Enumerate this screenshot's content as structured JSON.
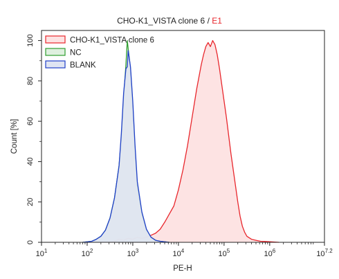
{
  "chart_data": {
    "type": "area",
    "title": {
      "main": "CHO-K1_VISTA clone 6",
      "separator": " / ",
      "gate": "E1",
      "main_color": "#222222",
      "gate_color": "#e8262c"
    },
    "xlabel": "PE-H",
    "ylabel": "Count [%]",
    "x_scale": "log",
    "xlim": [
      1,
      7.2
    ],
    "ylim": [
      0,
      105
    ],
    "x_ticks": [
      {
        "value": 1,
        "base": "10",
        "exp": "1"
      },
      {
        "value": 2,
        "base": "10",
        "exp": "2"
      },
      {
        "value": 3,
        "base": "10",
        "exp": "3"
      },
      {
        "value": 4,
        "base": "10",
        "exp": "4"
      },
      {
        "value": 5,
        "base": "10",
        "exp": "5"
      },
      {
        "value": 6,
        "base": "10",
        "exp": "6"
      },
      {
        "value": 7.2,
        "base": "10",
        "exp": "7.2"
      }
    ],
    "y_ticks": [
      {
        "value": 0,
        "label": "0"
      },
      {
        "value": 20,
        "label": "20"
      },
      {
        "value": 40,
        "label": "40"
      },
      {
        "value": 60,
        "label": "60"
      },
      {
        "value": 80,
        "label": "80"
      },
      {
        "value": 100,
        "label": "100"
      }
    ],
    "legend_position": "top-left",
    "grid": false,
    "series": [
      {
        "name": "CHO-K1_VISTA clone 6",
        "color": "#e8262c",
        "fill": "#fde3e3",
        "points": [
          [
            2.5,
            0
          ],
          [
            2.6,
            0.5
          ],
          [
            2.7,
            1.5
          ],
          [
            2.8,
            1
          ],
          [
            2.9,
            2
          ],
          [
            3.0,
            1.5
          ],
          [
            3.1,
            2.5
          ],
          [
            3.2,
            2
          ],
          [
            3.3,
            2.5
          ],
          [
            3.4,
            3.5
          ],
          [
            3.5,
            4.5
          ],
          [
            3.6,
            6.5
          ],
          [
            3.7,
            10
          ],
          [
            3.8,
            14
          ],
          [
            3.9,
            18
          ],
          [
            4.0,
            26
          ],
          [
            4.1,
            36
          ],
          [
            4.2,
            48
          ],
          [
            4.3,
            62
          ],
          [
            4.4,
            76
          ],
          [
            4.45,
            82
          ],
          [
            4.5,
            88
          ],
          [
            4.55,
            93
          ],
          [
            4.6,
            97
          ],
          [
            4.65,
            99
          ],
          [
            4.7,
            97
          ],
          [
            4.75,
            100
          ],
          [
            4.8,
            98
          ],
          [
            4.85,
            93
          ],
          [
            4.9,
            86
          ],
          [
            4.95,
            78
          ],
          [
            5.0,
            70
          ],
          [
            5.05,
            62
          ],
          [
            5.1,
            53
          ],
          [
            5.15,
            44
          ],
          [
            5.2,
            36
          ],
          [
            5.25,
            28
          ],
          [
            5.3,
            20
          ],
          [
            5.35,
            13
          ],
          [
            5.4,
            8
          ],
          [
            5.45,
            5
          ],
          [
            5.5,
            3
          ],
          [
            5.6,
            1.5
          ],
          [
            5.7,
            1
          ],
          [
            5.8,
            0.5
          ],
          [
            6.0,
            0.3
          ],
          [
            6.2,
            0
          ]
        ]
      },
      {
        "name": "NC",
        "color": "#2f9e2f",
        "fill": "#dff0df",
        "points": [
          [
            1.9,
            0
          ],
          [
            2.1,
            0.5
          ],
          [
            2.2,
            1.5
          ],
          [
            2.3,
            3
          ],
          [
            2.4,
            6
          ],
          [
            2.5,
            12
          ],
          [
            2.6,
            22
          ],
          [
            2.7,
            38
          ],
          [
            2.75,
            52
          ],
          [
            2.8,
            72
          ],
          [
            2.85,
            88
          ],
          [
            2.88,
            100
          ],
          [
            2.9,
            96
          ],
          [
            2.95,
            86
          ],
          [
            3.0,
            68
          ],
          [
            3.05,
            46
          ],
          [
            3.1,
            28
          ],
          [
            3.2,
            14
          ],
          [
            3.3,
            6
          ],
          [
            3.4,
            2.5
          ],
          [
            3.5,
            1
          ],
          [
            3.6,
            0.5
          ],
          [
            3.8,
            0
          ]
        ]
      },
      {
        "name": "BLANK",
        "color": "#1f3fc9",
        "fill": "#dfe4f2",
        "points": [
          [
            1.9,
            0
          ],
          [
            2.1,
            0.5
          ],
          [
            2.2,
            1.5
          ],
          [
            2.3,
            3
          ],
          [
            2.4,
            6
          ],
          [
            2.5,
            12
          ],
          [
            2.6,
            22
          ],
          [
            2.7,
            38
          ],
          [
            2.75,
            54
          ],
          [
            2.8,
            74
          ],
          [
            2.85,
            86
          ],
          [
            2.88,
            87
          ],
          [
            2.9,
            95
          ],
          [
            2.95,
            87
          ],
          [
            3.0,
            70
          ],
          [
            3.05,
            48
          ],
          [
            3.1,
            30
          ],
          [
            3.2,
            15
          ],
          [
            3.3,
            6.5
          ],
          [
            3.4,
            2.5
          ],
          [
            3.5,
            1
          ],
          [
            3.6,
            0.5
          ],
          [
            3.8,
            0
          ]
        ]
      }
    ]
  }
}
